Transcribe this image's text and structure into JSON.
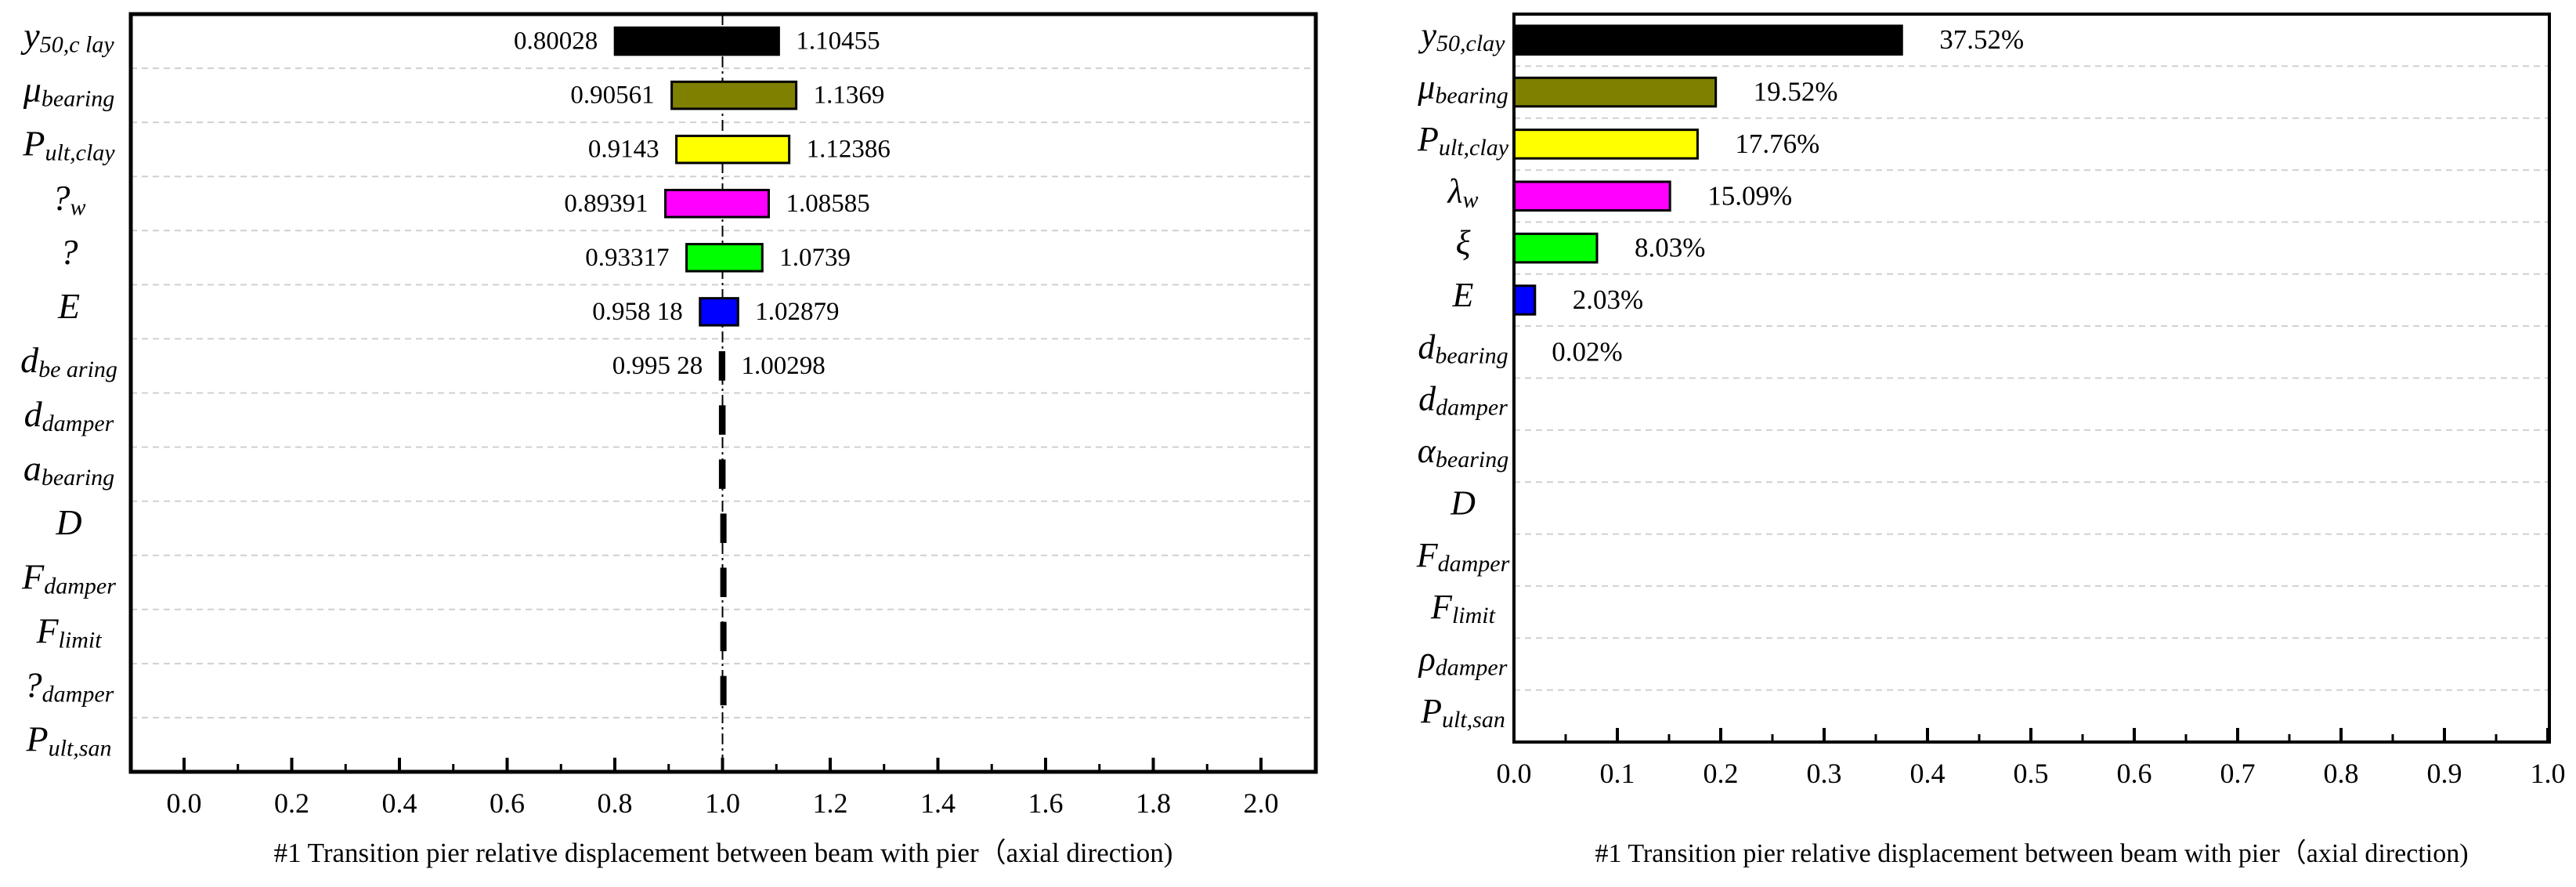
{
  "chart_data": [
    {
      "type": "tornado",
      "xlabel": "#1 Transition pier  relative displacement between beam with pier（axial direction)",
      "xlim": [
        0,
        2.0
      ],
      "xticks": [
        "0.0",
        "0.2",
        "0.4",
        "0.6",
        "0.8",
        "1.0",
        "1.2",
        "1.4",
        "1.6",
        "1.8",
        "2.0"
      ],
      "xtick_values": [
        0,
        0.2,
        0.4,
        0.6,
        0.8,
        1.0,
        1.2,
        1.4,
        1.6,
        1.8,
        2.0
      ],
      "baseline": 1.0,
      "categories": [
        {
          "base": "y",
          "sub": "50,c lay"
        },
        {
          "base": "μ",
          "sub": "bearing"
        },
        {
          "base": "P",
          "sub": "ult,clay"
        },
        {
          "base": "?",
          "sub": "w"
        },
        {
          "base": "?",
          "sub": ""
        },
        {
          "base": "E",
          "sub": ""
        },
        {
          "base": "d",
          "sub": "be aring"
        },
        {
          "base": "d",
          "sub": "damper"
        },
        {
          "base": "a",
          "sub": "bearing"
        },
        {
          "base": "D",
          "sub": ""
        },
        {
          "base": "F",
          "sub": "damper"
        },
        {
          "base": "F",
          "sub": "limit"
        },
        {
          "base": "?",
          "sub": "damper"
        },
        {
          "base": "P",
          "sub": "ult,san"
        }
      ],
      "low": [
        0.80028,
        0.90561,
        0.9143,
        0.89391,
        0.93317,
        0.95818,
        0.99528,
        0.9955,
        0.9955,
        0.998,
        0.998,
        0.998,
        0.998,
        null
      ],
      "high": [
        1.10455,
        1.1369,
        1.12386,
        1.08585,
        1.0739,
        1.02879,
        1.00298,
        1.0035,
        1.0035,
        1.002,
        1.002,
        1.002,
        1.002,
        null
      ],
      "low_labels": [
        "0.80028",
        "0.90561",
        "0.9143",
        "0.89391",
        "0.93317",
        "0.958 18",
        "0.995 28",
        "",
        "",
        "",
        "",
        "",
        "",
        ""
      ],
      "high_labels": [
        "1.10455",
        "1.1369",
        "1.12386",
        "1.08585",
        "1.0739",
        "1.02879",
        "1.00298",
        "",
        "",
        "",
        "",
        "",
        "",
        ""
      ],
      "colors": [
        "#000000",
        "#808000",
        "#ffff00",
        "#ff00ff",
        "#00ff00",
        "#0000ff",
        "#000000",
        "#000000",
        "#000000",
        "#000000",
        "#000000",
        "#000000",
        "#000000",
        "#000000"
      ]
    },
    {
      "type": "bar",
      "orientation": "horizontal",
      "xlabel": "#1 Transition pier  relative displacement between beam with pier（axial direction)",
      "xlim": [
        0,
        1.0
      ],
      "xticks": [
        "0.0",
        "0.1",
        "0.2",
        "0.3",
        "0.4",
        "0.5",
        "0.6",
        "0.7",
        "0.8",
        "0.9",
        "1.0"
      ],
      "xtick_values": [
        0,
        0.1,
        0.2,
        0.3,
        0.4,
        0.5,
        0.6,
        0.7,
        0.8,
        0.9,
        1.0
      ],
      "categories": [
        {
          "base": "y",
          "sub": "50,clay"
        },
        {
          "base": "μ",
          "sub": "bearing"
        },
        {
          "base": "P",
          "sub": "ult,clay"
        },
        {
          "base": "λ",
          "sub": "w"
        },
        {
          "base": "ξ",
          "sub": ""
        },
        {
          "base": "E",
          "sub": ""
        },
        {
          "base": "d",
          "sub": "bearing"
        },
        {
          "base": "d",
          "sub": "damper"
        },
        {
          "base": "α",
          "sub": "bearing"
        },
        {
          "base": "D",
          "sub": ""
        },
        {
          "base": "F",
          "sub": "damper"
        },
        {
          "base": "F",
          "sub": "limit"
        },
        {
          "base": "ρ",
          "sub": "damper"
        },
        {
          "base": "P",
          "sub": "ult,san"
        }
      ],
      "values": [
        0.3752,
        0.1952,
        0.1776,
        0.1509,
        0.0803,
        0.0203,
        0.0002,
        0,
        0,
        0,
        0,
        0,
        0,
        0
      ],
      "value_labels": [
        "37.52%",
        "19.52%",
        "17.76%",
        "15.09%",
        "8.03%",
        "2.03%",
        "0.02%",
        "",
        "",
        "",
        "",
        "",
        "",
        ""
      ],
      "colors": [
        "#000000",
        "#808000",
        "#ffff00",
        "#ff00ff",
        "#00ff00",
        "#0000ff",
        "#000000",
        "#000000",
        "#000000",
        "#000000",
        "#000000",
        "#000000",
        "#000000",
        "#000000"
      ]
    }
  ]
}
